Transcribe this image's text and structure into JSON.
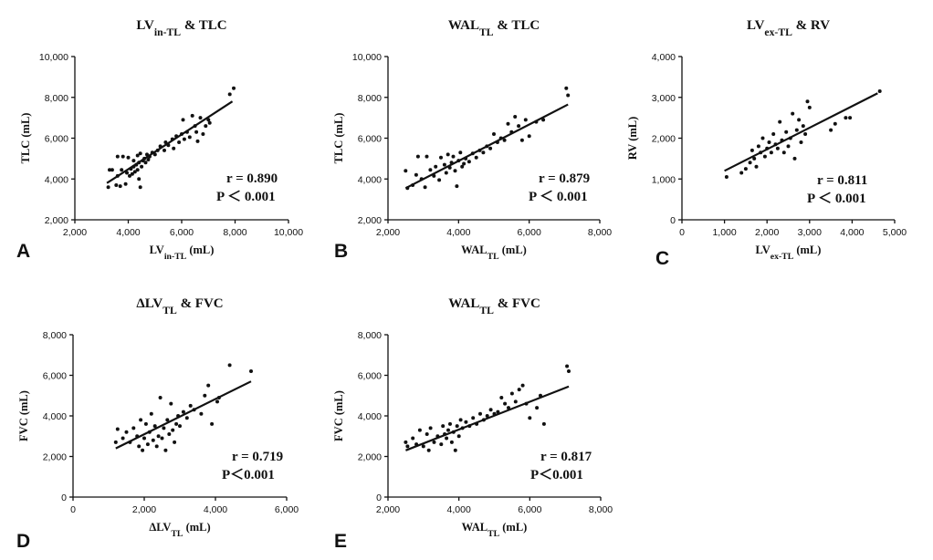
{
  "chart_data": [
    {
      "type": "scatter",
      "panel": "A",
      "title": {
        "main": "LV",
        "sub": "in-TL",
        "rest": " & TLC"
      },
      "xlabel": {
        "main": "LV",
        "sub": "in-TL",
        "rest": " (mL)"
      },
      "ylabel": "TLC (mL)",
      "xlim": [
        2000,
        10000
      ],
      "ylim": [
        2000,
        10000
      ],
      "xticks": [
        "2,000",
        "4,000",
        "6,000",
        "8,000",
        "10,000"
      ],
      "yticks": [
        "2,000",
        "4,000",
        "6,000",
        "8,000",
        "10,000"
      ],
      "stats": {
        "r": "r = 0.890",
        "p": "P ＜ 0.001"
      },
      "fit_line": {
        "x": [
          3200,
          7900
        ],
        "y": [
          3800,
          7800
        ]
      },
      "points": [
        [
          3250,
          3600
        ],
        [
          3300,
          4450
        ],
        [
          3400,
          4450
        ],
        [
          3550,
          3700
        ],
        [
          3600,
          4150
        ],
        [
          3600,
          5100
        ],
        [
          3700,
          3650
        ],
        [
          3750,
          4450
        ],
        [
          3800,
          5100
        ],
        [
          3900,
          3750
        ],
        [
          3950,
          4300
        ],
        [
          4000,
          5050
        ],
        [
          4050,
          4150
        ],
        [
          4100,
          4500
        ],
        [
          4150,
          4250
        ],
        [
          4200,
          4600
        ],
        [
          4200,
          4900
        ],
        [
          4250,
          4350
        ],
        [
          4300,
          4700
        ],
        [
          4350,
          4450
        ],
        [
          4350,
          5150
        ],
        [
          4400,
          4000
        ],
        [
          4400,
          4800
        ],
        [
          4450,
          3600
        ],
        [
          4450,
          5250
        ],
        [
          4500,
          4600
        ],
        [
          4550,
          4900
        ],
        [
          4600,
          5000
        ],
        [
          4650,
          4800
        ],
        [
          4700,
          5200
        ],
        [
          4750,
          4950
        ],
        [
          4800,
          5100
        ],
        [
          4900,
          5300
        ],
        [
          5000,
          5200
        ],
        [
          5100,
          5400
        ],
        [
          5200,
          5600
        ],
        [
          5350,
          5400
        ],
        [
          5400,
          5800
        ],
        [
          5500,
          5650
        ],
        [
          5650,
          5950
        ],
        [
          5700,
          5500
        ],
        [
          5800,
          6100
        ],
        [
          5900,
          5800
        ],
        [
          6000,
          6200
        ],
        [
          6050,
          6900
        ],
        [
          6100,
          5950
        ],
        [
          6200,
          6300
        ],
        [
          6300,
          6050
        ],
        [
          6400,
          7100
        ],
        [
          6500,
          6600
        ],
        [
          6550,
          6300
        ],
        [
          6600,
          5850
        ],
        [
          6700,
          7000
        ],
        [
          6800,
          6200
        ],
        [
          6900,
          6600
        ],
        [
          7000,
          6900
        ],
        [
          7050,
          6750
        ],
        [
          7800,
          8150
        ],
        [
          7950,
          8450
        ]
      ]
    },
    {
      "type": "scatter",
      "panel": "B",
      "title": {
        "main": "WAL",
        "sub": "TL",
        "rest": " & TLC"
      },
      "xlabel": {
        "main": "WAL",
        "sub": "TL",
        "rest": " (mL)"
      },
      "ylabel": "TLC (mL)",
      "xlim": [
        2000,
        8000
      ],
      "ylim": [
        2000,
        10000
      ],
      "xticks": [
        "2,000",
        "4,000",
        "6,000",
        "8,000"
      ],
      "yticks": [
        "2,000",
        "4,000",
        "6,000",
        "8,000",
        "10,000"
      ],
      "stats": {
        "r": "r = 0.879",
        "p": "P ＜ 0.001"
      },
      "fit_line": {
        "x": [
          2500,
          7100
        ],
        "y": [
          3550,
          7650
        ]
      },
      "points": [
        [
          2500,
          4400
        ],
        [
          2550,
          3550
        ],
        [
          2700,
          3700
        ],
        [
          2800,
          4200
        ],
        [
          2850,
          5100
        ],
        [
          2950,
          4000
        ],
        [
          3050,
          3600
        ],
        [
          3100,
          5100
        ],
        [
          3200,
          4450
        ],
        [
          3300,
          4150
        ],
        [
          3350,
          4600
        ],
        [
          3450,
          3950
        ],
        [
          3500,
          5050
        ],
        [
          3600,
          4700
        ],
        [
          3650,
          4300
        ],
        [
          3700,
          5200
        ],
        [
          3750,
          4550
        ],
        [
          3800,
          4800
        ],
        [
          3850,
          5100
        ],
        [
          3900,
          4400
        ],
        [
          3950,
          3650
        ],
        [
          4000,
          4900
        ],
        [
          4050,
          5300
        ],
        [
          4100,
          4600
        ],
        [
          4150,
          4750
        ],
        [
          4200,
          5000
        ],
        [
          4300,
          4850
        ],
        [
          4400,
          5250
        ],
        [
          4500,
          5050
        ],
        [
          4600,
          5400
        ],
        [
          4700,
          5300
        ],
        [
          4800,
          5600
        ],
        [
          4900,
          5500
        ],
        [
          5000,
          6200
        ],
        [
          5100,
          5800
        ],
        [
          5200,
          6000
        ],
        [
          5300,
          5900
        ],
        [
          5400,
          6700
        ],
        [
          5500,
          6300
        ],
        [
          5600,
          7050
        ],
        [
          5700,
          6600
        ],
        [
          5800,
          5900
        ],
        [
          5900,
          6900
        ],
        [
          6000,
          6100
        ],
        [
          6200,
          6800
        ],
        [
          6400,
          6900
        ],
        [
          7050,
          8450
        ],
        [
          7100,
          8100
        ]
      ]
    },
    {
      "type": "scatter",
      "panel": "C",
      "title": {
        "main": "LV",
        "sub": "ex-TL",
        "rest": " & RV"
      },
      "xlabel": {
        "main": "LV",
        "sub": "ex-TL",
        "rest": " (mL)"
      },
      "ylabel": "RV (mL)",
      "xlim": [
        0,
        5000
      ],
      "ylim": [
        0,
        4000
      ],
      "xticks": [
        "0",
        "1,000",
        "2,000",
        "3,000",
        "4,000",
        "5,000"
      ],
      "yticks": [
        "0",
        "1,000",
        "2,000",
        "3,000",
        "4,000"
      ],
      "stats": {
        "r": "r = 0.811",
        "p": "P ＜ 0.001"
      },
      "fit_line": {
        "x": [
          1000,
          4600
        ],
        "y": [
          1200,
          3100
        ]
      },
      "points": [
        [
          1050,
          1050
        ],
        [
          1400,
          1150
        ],
        [
          1500,
          1250
        ],
        [
          1600,
          1400
        ],
        [
          1650,
          1700
        ],
        [
          1700,
          1500
        ],
        [
          1750,
          1300
        ],
        [
          1800,
          1800
        ],
        [
          1850,
          1650
        ],
        [
          1900,
          2000
        ],
        [
          1950,
          1550
        ],
        [
          2000,
          1750
        ],
        [
          2050,
          1900
        ],
        [
          2100,
          1650
        ],
        [
          2150,
          2100
        ],
        [
          2200,
          1850
        ],
        [
          2250,
          1750
        ],
        [
          2300,
          2400
        ],
        [
          2350,
          1950
        ],
        [
          2400,
          1650
        ],
        [
          2450,
          2150
        ],
        [
          2500,
          1800
        ],
        [
          2550,
          2000
        ],
        [
          2600,
          2600
        ],
        [
          2650,
          1500
        ],
        [
          2700,
          2200
        ],
        [
          2750,
          2450
        ],
        [
          2800,
          1900
        ],
        [
          2850,
          2300
        ],
        [
          2900,
          2100
        ],
        [
          2950,
          2900
        ],
        [
          3000,
          2750
        ],
        [
          3500,
          2200
        ],
        [
          3600,
          2350
        ],
        [
          3850,
          2500
        ],
        [
          3950,
          2500
        ],
        [
          4650,
          3150
        ]
      ]
    },
    {
      "type": "scatter",
      "panel": "D",
      "title": {
        "main": "ΔLV",
        "sub": "TL",
        "rest": " & FVC"
      },
      "xlabel": {
        "main": "ΔLV",
        "sub": "TL",
        "rest": " (mL)"
      },
      "ylabel": "FVC (mL)",
      "xlim": [
        0,
        6000
      ],
      "ylim": [
        0,
        8000
      ],
      "xticks": [
        "0",
        "2,000",
        "4,000",
        "6,000"
      ],
      "yticks": [
        "0",
        "2,000",
        "4,000",
        "6,000",
        "8,000"
      ],
      "stats": {
        "r": "r = 0.719",
        "p": "P＜0.001"
      },
      "fit_line": {
        "x": [
          1200,
          5000
        ],
        "y": [
          2400,
          5700
        ]
      },
      "points": [
        [
          1200,
          2700
        ],
        [
          1250,
          3350
        ],
        [
          1400,
          2900
        ],
        [
          1500,
          3200
        ],
        [
          1600,
          2700
        ],
        [
          1700,
          3400
        ],
        [
          1800,
          3000
        ],
        [
          1850,
          2500
        ],
        [
          1900,
          3800
        ],
        [
          1950,
          2300
        ],
        [
          2000,
          2900
        ],
        [
          2050,
          3600
        ],
        [
          2100,
          2600
        ],
        [
          2150,
          3200
        ],
        [
          2200,
          4100
        ],
        [
          2250,
          2800
        ],
        [
          2300,
          3500
        ],
        [
          2350,
          2500
        ],
        [
          2400,
          3000
        ],
        [
          2450,
          4900
        ],
        [
          2500,
          2900
        ],
        [
          2550,
          3400
        ],
        [
          2600,
          2300
        ],
        [
          2650,
          3800
        ],
        [
          2700,
          3100
        ],
        [
          2750,
          4600
        ],
        [
          2800,
          3300
        ],
        [
          2850,
          2700
        ],
        [
          2900,
          3600
        ],
        [
          2950,
          4000
        ],
        [
          3000,
          3500
        ],
        [
          3100,
          4200
        ],
        [
          3200,
          3900
        ],
        [
          3300,
          4500
        ],
        [
          3400,
          4300
        ],
        [
          3600,
          4100
        ],
        [
          3700,
          5000
        ],
        [
          3800,
          5500
        ],
        [
          3900,
          3600
        ],
        [
          4050,
          4700
        ],
        [
          4100,
          4900
        ],
        [
          4400,
          6500
        ],
        [
          5000,
          6200
        ]
      ]
    },
    {
      "type": "scatter",
      "panel": "E",
      "title": {
        "main": "WAL",
        "sub": "TL",
        "rest": " & FVC"
      },
      "xlabel": {
        "main": "WAL",
        "sub": "TL",
        "rest": " (mL)"
      },
      "ylabel": "FVC (mL)",
      "xlim": [
        2000,
        8000
      ],
      "ylim": [
        0,
        8000
      ],
      "xticks": [
        "2,000",
        "4,000",
        "6,000",
        "8,000"
      ],
      "yticks": [
        "0",
        "2,000",
        "4,000",
        "6,000",
        "8,000"
      ],
      "stats": {
        "r": "r = 0.817",
        "p": "P＜0.001"
      },
      "fit_line": {
        "x": [
          2500,
          7100
        ],
        "y": [
          2300,
          5450
        ]
      },
      "points": [
        [
          2500,
          2700
        ],
        [
          2550,
          2500
        ],
        [
          2700,
          2900
        ],
        [
          2800,
          2600
        ],
        [
          2900,
          3300
        ],
        [
          3000,
          2500
        ],
        [
          3100,
          3100
        ],
        [
          3150,
          2300
        ],
        [
          3200,
          3400
        ],
        [
          3300,
          2700
        ],
        [
          3400,
          3000
        ],
        [
          3500,
          2600
        ],
        [
          3550,
          3500
        ],
        [
          3600,
          3100
        ],
        [
          3650,
          2900
        ],
        [
          3700,
          3300
        ],
        [
          3750,
          3600
        ],
        [
          3800,
          2700
        ],
        [
          3850,
          3200
        ],
        [
          3900,
          2300
        ],
        [
          3950,
          3500
        ],
        [
          4000,
          3000
        ],
        [
          4050,
          3800
        ],
        [
          4100,
          3400
        ],
        [
          4200,
          3700
        ],
        [
          4300,
          3500
        ],
        [
          4400,
          3900
        ],
        [
          4500,
          3600
        ],
        [
          4600,
          4100
        ],
        [
          4700,
          3800
        ],
        [
          4800,
          4000
        ],
        [
          4900,
          4300
        ],
        [
          5000,
          4100
        ],
        [
          5100,
          4200
        ],
        [
          5200,
          4900
        ],
        [
          5300,
          4600
        ],
        [
          5400,
          4400
        ],
        [
          5500,
          5100
        ],
        [
          5600,
          4700
        ],
        [
          5700,
          5300
        ],
        [
          5800,
          5500
        ],
        [
          5900,
          4600
        ],
        [
          6000,
          3900
        ],
        [
          6200,
          4400
        ],
        [
          6300,
          5000
        ],
        [
          6400,
          3600
        ],
        [
          7050,
          6450
        ],
        [
          7100,
          6200
        ]
      ]
    }
  ]
}
